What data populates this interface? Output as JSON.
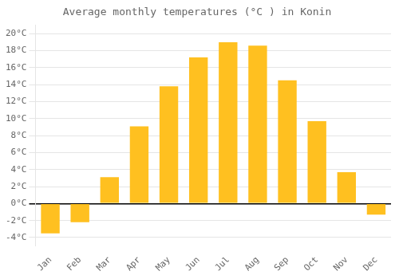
{
  "chart_data": {
    "type": "bar",
    "title": "Average monthly temperatures (°C ) in Konin",
    "categories": [
      "Jan",
      "Feb",
      "Mar",
      "Apr",
      "May",
      "Jun",
      "Jul",
      "Aug",
      "Sep",
      "Oct",
      "Nov",
      "Dec"
    ],
    "values": [
      -3.5,
      -2.2,
      3.1,
      9.1,
      13.8,
      17.2,
      19.0,
      18.6,
      14.5,
      9.7,
      3.7,
      -1.3
    ],
    "color": "#FFC020",
    "ylim": [
      -5,
      21
    ],
    "yticks": [
      {
        "value": -4,
        "label": "-4°C"
      },
      {
        "value": -2,
        "label": "-2°C"
      },
      {
        "value": 0,
        "label": "0°C"
      },
      {
        "value": 2,
        "label": "2°C"
      },
      {
        "value": 4,
        "label": "4°C"
      },
      {
        "value": 6,
        "label": "6°C"
      },
      {
        "value": 8,
        "label": "8°C"
      },
      {
        "value": 10,
        "label": "10°C"
      },
      {
        "value": 12,
        "label": "12°C"
      },
      {
        "value": 14,
        "label": "14°C"
      },
      {
        "value": 16,
        "label": "16°C"
      },
      {
        "value": 18,
        "label": "18°C"
      },
      {
        "value": 20,
        "label": "20°C"
      }
    ],
    "grid": true
  }
}
